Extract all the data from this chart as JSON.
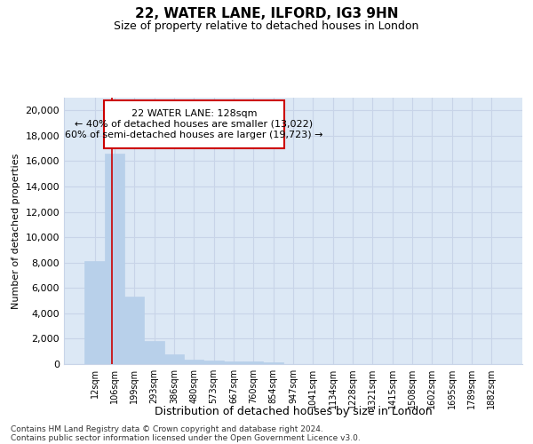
{
  "title1": "22, WATER LANE, ILFORD, IG3 9HN",
  "title2": "Size of property relative to detached houses in London",
  "xlabel": "Distribution of detached houses by size in London",
  "ylabel": "Number of detached properties",
  "categories": [
    "12sqm",
    "106sqm",
    "199sqm",
    "293sqm",
    "386sqm",
    "480sqm",
    "573sqm",
    "667sqm",
    "760sqm",
    "854sqm",
    "947sqm",
    "1041sqm",
    "1134sqm",
    "1228sqm",
    "1321sqm",
    "1415sqm",
    "1508sqm",
    "1602sqm",
    "1695sqm",
    "1789sqm",
    "1882sqm"
  ],
  "values": [
    8150,
    16600,
    5300,
    1850,
    750,
    350,
    280,
    220,
    200,
    150,
    0,
    0,
    0,
    0,
    0,
    0,
    0,
    0,
    0,
    0,
    0
  ],
  "bar_color": "#b8d0ea",
  "bar_edge_color": "#b8d0ea",
  "highlight_bar_index": 1,
  "red_line_color": "#cc0000",
  "annotation_line1": "22 WATER LANE: 128sqm",
  "annotation_line2": "← 40% of detached houses are smaller (13,022)",
  "annotation_line3": "60% of semi-detached houses are larger (19,723) →",
  "ylim": [
    0,
    21000
  ],
  "yticks": [
    0,
    2000,
    4000,
    6000,
    8000,
    10000,
    12000,
    14000,
    16000,
    18000,
    20000
  ],
  "grid_color": "#c8d4e8",
  "background_color": "#dce8f5",
  "footer1": "Contains HM Land Registry data © Crown copyright and database right 2024.",
  "footer2": "Contains public sector information licensed under the Open Government Licence v3.0."
}
